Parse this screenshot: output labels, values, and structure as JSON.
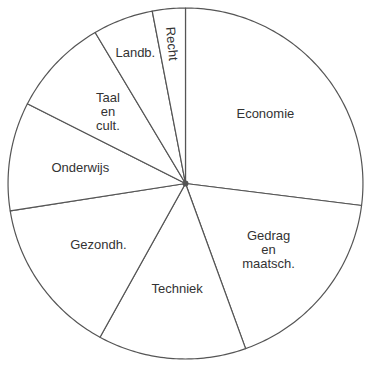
{
  "chart_data": {
    "type": "pie",
    "categories": [
      "Economie",
      "Gedrag en maatsch.",
      "Techniek",
      "Gezondh.",
      "Onderwijs",
      "Taal en cult.",
      "Landb.",
      "Recht"
    ],
    "values": [
      27,
      17.5,
      13.5,
      14.5,
      10,
      9,
      5.5,
      3
    ],
    "color": "#ffffff"
  }
}
